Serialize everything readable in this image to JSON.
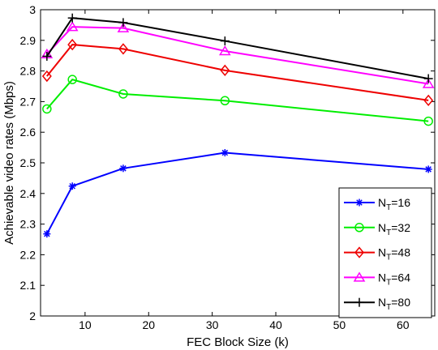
{
  "chart_data": {
    "type": "line",
    "title": "",
    "xlabel": "FEC Block Size (k)",
    "ylabel": "Achievable video rates (Mbps)",
    "xlim": [
      3,
      65
    ],
    "ylim": [
      2,
      3
    ],
    "xticks": [
      10,
      20,
      30,
      40,
      50,
      60
    ],
    "yticks": [
      2,
      2.1,
      2.2,
      2.3,
      2.4,
      2.5,
      2.6,
      2.7,
      2.8,
      2.9,
      3
    ],
    "xtick_labels": [
      "10",
      "20",
      "30",
      "40",
      "50",
      "60"
    ],
    "ytick_labels": [
      "2",
      "2.1",
      "2.2",
      "2.3",
      "2.4",
      "2.5",
      "2.6",
      "2.7",
      "2.8",
      "2.9",
      "3"
    ],
    "grid": false,
    "legend_position": "bottom-right",
    "x": [
      4,
      8,
      16,
      32,
      64
    ],
    "series": [
      {
        "name": "N_T=16",
        "label_main": "N",
        "label_sub": "T",
        "label_rest": "=16",
        "color": "#0000ff",
        "marker": "asterisk",
        "values": [
          2.268,
          2.424,
          2.482,
          2.533,
          2.479
        ]
      },
      {
        "name": "N_T=32",
        "label_main": "N",
        "label_sub": "T",
        "label_rest": "=32",
        "color": "#00ee00",
        "marker": "circle",
        "values": [
          2.676,
          2.772,
          2.725,
          2.703,
          2.636
        ]
      },
      {
        "name": "N_T=48",
        "label_main": "N",
        "label_sub": "T",
        "label_rest": "=48",
        "color": "#ee0000",
        "marker": "diamond",
        "values": [
          2.783,
          2.886,
          2.872,
          2.802,
          2.704
        ]
      },
      {
        "name": "N_T=64",
        "label_main": "N",
        "label_sub": "T",
        "label_rest": "=64",
        "color": "#ff00ff",
        "marker": "triangle",
        "values": [
          2.855,
          2.944,
          2.94,
          2.865,
          2.758
        ]
      },
      {
        "name": "N_T=80",
        "label_main": "N",
        "label_sub": "T",
        "label_rest": "=80",
        "color": "#000000",
        "marker": "plus",
        "values": [
          2.848,
          2.973,
          2.958,
          2.898,
          2.775
        ]
      }
    ]
  }
}
